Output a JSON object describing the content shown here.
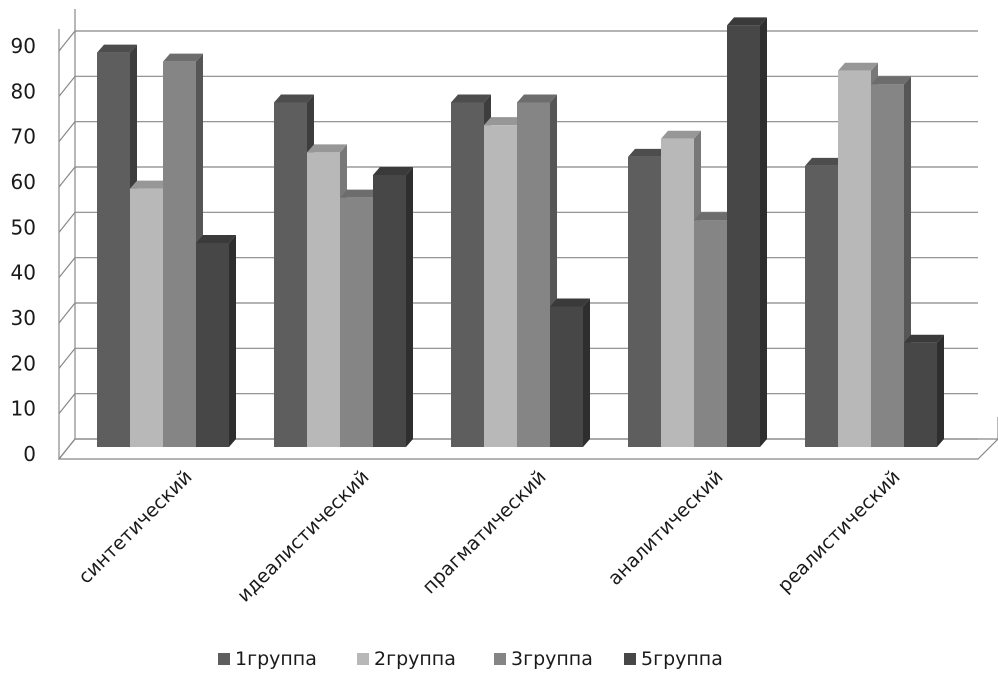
{
  "chart_data": {
    "type": "bar",
    "categories": [
      "синтетический",
      "идеалистический",
      "прагматический",
      "аналитический",
      "реалистический"
    ],
    "series": [
      {
        "name": "1группа",
        "values": [
          87,
          76,
          76,
          64,
          62
        ],
        "color": "#5e5e5e"
      },
      {
        "name": "2группа",
        "values": [
          57,
          65,
          71,
          68,
          83
        ],
        "color": "#b8b8b8"
      },
      {
        "name": "3группа",
        "values": [
          85,
          55,
          76,
          50,
          80
        ],
        "color": "#858585"
      },
      {
        "name": "5группа",
        "values": [
          45,
          60,
          31,
          93,
          23
        ],
        "color": "#474747"
      }
    ],
    "ylim": [
      0,
      90
    ],
    "ytick_step": 10,
    "grid": true,
    "legend_position": "bottom",
    "style": "3d-clustered-column"
  }
}
